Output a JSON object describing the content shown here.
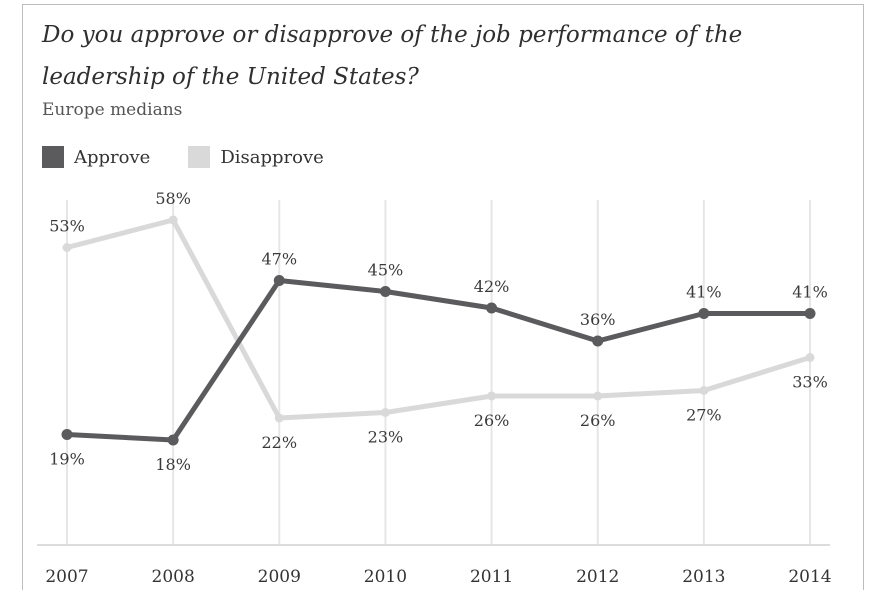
{
  "chart_data": {
    "type": "line",
    "title": "Do you approve or disapprove of the job performance of the leadership of the United States?",
    "subtitle": "Europe medians",
    "categories": [
      "2007",
      "2008",
      "2009",
      "2010",
      "2011",
      "2012",
      "2013",
      "2014"
    ],
    "series": [
      {
        "name": "Approve",
        "color": "#5b5b5e",
        "values": [
          19,
          18,
          47,
          45,
          42,
          36,
          41,
          41
        ],
        "labels": [
          "19%",
          "18%",
          "47%",
          "45%",
          "42%",
          "36%",
          "41%",
          "41%"
        ]
      },
      {
        "name": "Disapprove",
        "color": "#d9d9d9",
        "values": [
          53,
          58,
          22,
          23,
          26,
          26,
          27,
          33
        ],
        "labels": [
          "53%",
          "58%",
          "22%",
          "23%",
          "26%",
          "26%",
          "27%",
          "33%"
        ]
      }
    ],
    "grid": "vertical",
    "legend_position": "top-left"
  }
}
